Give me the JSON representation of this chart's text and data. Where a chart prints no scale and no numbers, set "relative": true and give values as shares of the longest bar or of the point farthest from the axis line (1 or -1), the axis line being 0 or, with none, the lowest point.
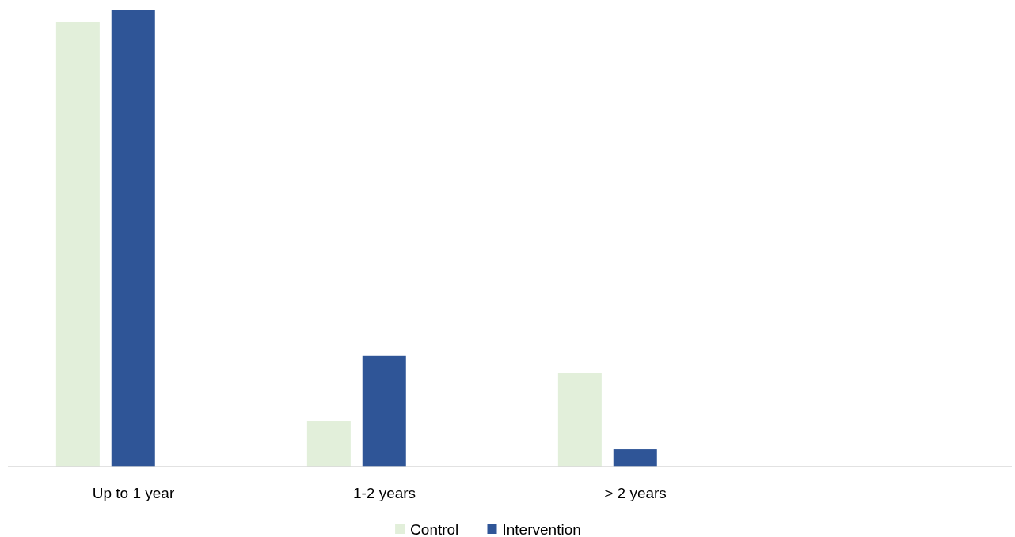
{
  "chart_data": {
    "type": "bar",
    "relative": true,
    "categories": [
      "Up to 1 year",
      "1-2 years",
      "> 2 years",
      null
    ],
    "series": [
      {
        "name": "Control",
        "color": "#e2efda",
        "values": [
          0.974,
          0.1005,
          0.2045,
          null
        ]
      },
      {
        "name": "Intervention",
        "color": "#2f5597",
        "values": [
          1,
          0.243,
          0.038,
          null
        ]
      }
    ],
    "legend": "bottom",
    "grid": false
  }
}
